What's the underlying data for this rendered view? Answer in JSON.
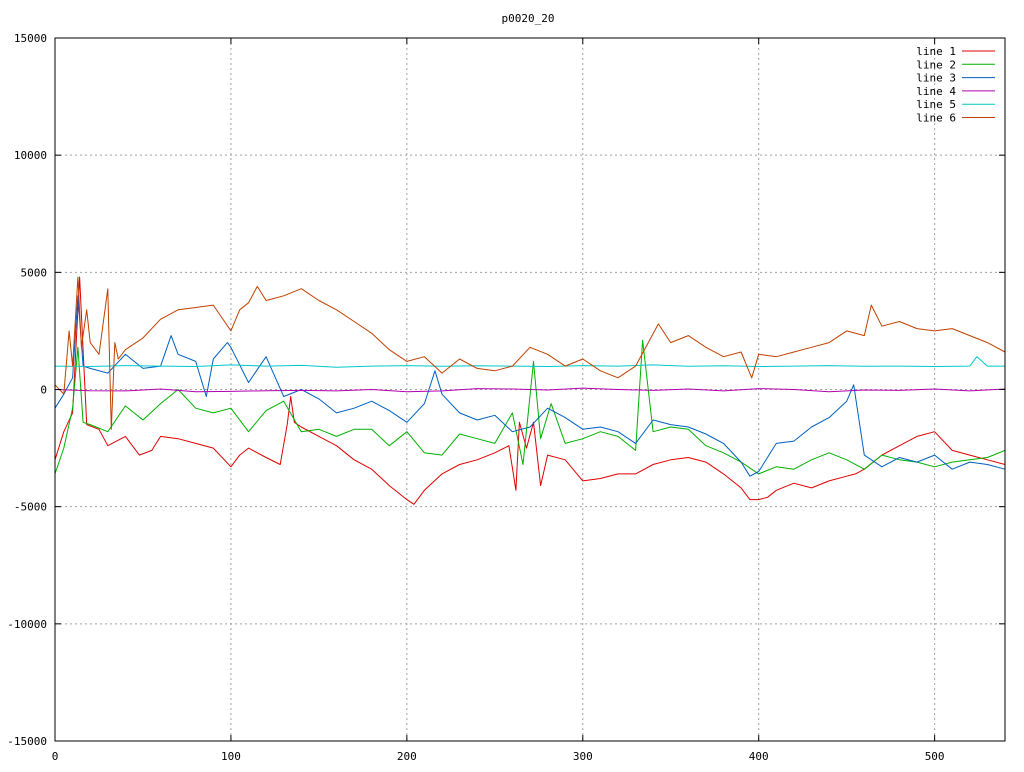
{
  "chart_data": {
    "type": "line",
    "title": "p0020_20",
    "xlabel": "",
    "ylabel": "",
    "xlim": [
      0,
      540
    ],
    "ylim": [
      -15000,
      15000
    ],
    "xticks": [
      0,
      100,
      200,
      300,
      400,
      500
    ],
    "xtick_labels": [
      "0",
      "100",
      "200",
      "300",
      "400",
      "500"
    ],
    "yticks": [
      -15000,
      -10000,
      -5000,
      0,
      5000,
      10000,
      15000
    ],
    "ytick_labels": [
      "-15000",
      "-10000",
      "-5000",
      "0",
      "5000",
      "10000",
      "15000"
    ],
    "grid": true,
    "legend_position": "top-right",
    "series": [
      {
        "name": "line 1",
        "color": "#e00000",
        "x": [
          0,
          5,
          10,
          14,
          18,
          25,
          30,
          40,
          48,
          55,
          60,
          70,
          80,
          90,
          100,
          105,
          110,
          120,
          128,
          132,
          134,
          136,
          140,
          150,
          160,
          170,
          180,
          190,
          200,
          204,
          210,
          220,
          230,
          240,
          250,
          258,
          262,
          264,
          268,
          272,
          276,
          280,
          290,
          300,
          310,
          320,
          330,
          340,
          350,
          360,
          370,
          380,
          390,
          395,
          400,
          405,
          410,
          420,
          430,
          440,
          450,
          455,
          460,
          470,
          480,
          490,
          500,
          510,
          520,
          530,
          540
        ],
        "y": [
          -3000,
          -1800,
          -1000,
          4800,
          -1500,
          -1700,
          -2400,
          -2000,
          -2800,
          -2600,
          -2000,
          -2100,
          -2300,
          -2500,
          -3300,
          -2800,
          -2500,
          -2900,
          -3200,
          -1500,
          -300,
          -1400,
          -1600,
          -2000,
          -2400,
          -3000,
          -3400,
          -4100,
          -4700,
          -4900,
          -4300,
          -3600,
          -3200,
          -3000,
          -2700,
          -2400,
          -4300,
          -1400,
          -2500,
          -1400,
          -4100,
          -2800,
          -3000,
          -3900,
          -3800,
          -3600,
          -3600,
          -3200,
          -3000,
          -2900,
          -3100,
          -3600,
          -4200,
          -4700,
          -4700,
          -4600,
          -4300,
          -4000,
          -4200,
          -3900,
          -3700,
          -3600,
          -3400,
          -2800,
          -2400,
          -2000,
          -1800,
          -2600,
          -2800,
          -3000,
          -3200
        ]
      },
      {
        "name": "line 2",
        "color": "#00b000",
        "x": [
          0,
          5,
          10,
          13,
          16,
          20,
          30,
          40,
          50,
          60,
          70,
          80,
          90,
          100,
          110,
          120,
          130,
          140,
          150,
          160,
          170,
          180,
          190,
          200,
          210,
          220,
          230,
          240,
          250,
          260,
          266,
          272,
          276,
          282,
          290,
          300,
          310,
          320,
          330,
          334,
          340,
          350,
          360,
          370,
          380,
          390,
          400,
          410,
          420,
          430,
          440,
          450,
          460,
          470,
          480,
          490,
          500,
          510,
          520,
          530,
          540
        ],
        "y": [
          -3600,
          -2500,
          -800,
          1800,
          -1400,
          -1500,
          -1800,
          -700,
          -1300,
          -600,
          0,
          -800,
          -1000,
          -800,
          -1800,
          -900,
          -500,
          -1800,
          -1700,
          -2000,
          -1700,
          -1700,
          -2400,
          -1800,
          -2700,
          -2800,
          -1900,
          -2100,
          -2300,
          -1000,
          -3200,
          1200,
          -2100,
          -600,
          -2300,
          -2100,
          -1800,
          -2000,
          -2600,
          2100,
          -1800,
          -1600,
          -1700,
          -2400,
          -2700,
          -3100,
          -3600,
          -3300,
          -3400,
          -3000,
          -2700,
          -3000,
          -3400,
          -2800,
          -3000,
          -3100,
          -3300,
          -3100,
          -3000,
          -2900,
          -2600
        ]
      },
      {
        "name": "line 3",
        "color": "#0060c0",
        "x": [
          0,
          5,
          10,
          13,
          16,
          20,
          30,
          40,
          50,
          60,
          66,
          70,
          80,
          86,
          90,
          98,
          100,
          110,
          120,
          130,
          140,
          150,
          160,
          170,
          180,
          190,
          200,
          210,
          216,
          220,
          230,
          240,
          250,
          260,
          270,
          280,
          290,
          300,
          310,
          320,
          330,
          340,
          350,
          360,
          370,
          380,
          390,
          395,
          400,
          410,
          420,
          430,
          440,
          450,
          454,
          460,
          470,
          480,
          490,
          500,
          510,
          520,
          530,
          540
        ],
        "y": [
          -800,
          -200,
          500,
          4000,
          1000,
          900,
          700,
          1500,
          900,
          1000,
          2300,
          1500,
          1200,
          -300,
          1300,
          2000,
          1800,
          300,
          1400,
          -300,
          0,
          -400,
          -1000,
          -800,
          -500,
          -900,
          -1400,
          -600,
          800,
          -200,
          -1000,
          -1300,
          -1100,
          -1800,
          -1600,
          -800,
          -1200,
          -1700,
          -1600,
          -1800,
          -2300,
          -1300,
          -1500,
          -1600,
          -1900,
          -2300,
          -3100,
          -3700,
          -3500,
          -2300,
          -2200,
          -1600,
          -1200,
          -500,
          200,
          -2800,
          -3300,
          -2900,
          -3100,
          -2800,
          -3400,
          -3100,
          -3200,
          -3400
        ]
      },
      {
        "name": "line 4",
        "color": "#b000b0",
        "x": [
          0,
          20,
          40,
          60,
          80,
          100,
          120,
          140,
          160,
          180,
          200,
          220,
          240,
          260,
          280,
          300,
          320,
          340,
          360,
          380,
          400,
          420,
          440,
          460,
          480,
          500,
          520,
          540
        ],
        "y": [
          0,
          -50,
          -60,
          20,
          -100,
          -80,
          -50,
          -40,
          -60,
          0,
          -100,
          -60,
          40,
          20,
          -20,
          60,
          0,
          -40,
          20,
          -60,
          40,
          0,
          -100,
          -20,
          -40,
          20,
          -60,
          20
        ]
      },
      {
        "name": "line 5",
        "color": "#00c8c8",
        "x": [
          0,
          20,
          40,
          60,
          80,
          100,
          120,
          140,
          160,
          180,
          200,
          220,
          240,
          260,
          280,
          300,
          320,
          340,
          360,
          380,
          400,
          420,
          440,
          460,
          480,
          500,
          520,
          524,
          530,
          540
        ],
        "y": [
          1000,
          980,
          1020,
          1000,
          980,
          1050,
          1000,
          1030,
          950,
          1000,
          1020,
          990,
          1010,
          1000,
          980,
          1020,
          1000,
          1050,
          990,
          1010,
          980,
          1000,
          1020,
          990,
          1000,
          980,
          1000,
          1400,
          1000,
          1000
        ]
      },
      {
        "name": "line 6",
        "color": "#c04000",
        "x": [
          0,
          5,
          8,
          10,
          13,
          15,
          18,
          20,
          25,
          30,
          32,
          34,
          36,
          40,
          50,
          60,
          70,
          80,
          90,
          100,
          105,
          110,
          115,
          120,
          130,
          140,
          150,
          160,
          170,
          180,
          190,
          200,
          210,
          220,
          230,
          240,
          250,
          260,
          270,
          280,
          290,
          300,
          310,
          320,
          330,
          343,
          350,
          360,
          370,
          380,
          390,
          396,
          400,
          410,
          420,
          430,
          440,
          450,
          460,
          464,
          470,
          480,
          490,
          500,
          510,
          520,
          530,
          540
        ],
        "y": [
          200,
          -200,
          2500,
          1000,
          4800,
          1800,
          3400,
          2000,
          1500,
          4300,
          -1700,
          2000,
          1300,
          1700,
          2200,
          3000,
          3400,
          3500,
          3600,
          2500,
          3400,
          3700,
          4400,
          3800,
          4000,
          4300,
          3800,
          3400,
          2900,
          2400,
          1700,
          1200,
          1400,
          700,
          1300,
          900,
          800,
          1000,
          1800,
          1500,
          1000,
          1300,
          800,
          500,
          1000,
          2800,
          2000,
          2300,
          1800,
          1400,
          1600,
          500,
          1500,
          1400,
          1600,
          1800,
          2000,
          2500,
          2300,
          3600,
          2700,
          2900,
          2600,
          2500,
          2600,
          2300,
          2000,
          1600
        ]
      }
    ]
  }
}
